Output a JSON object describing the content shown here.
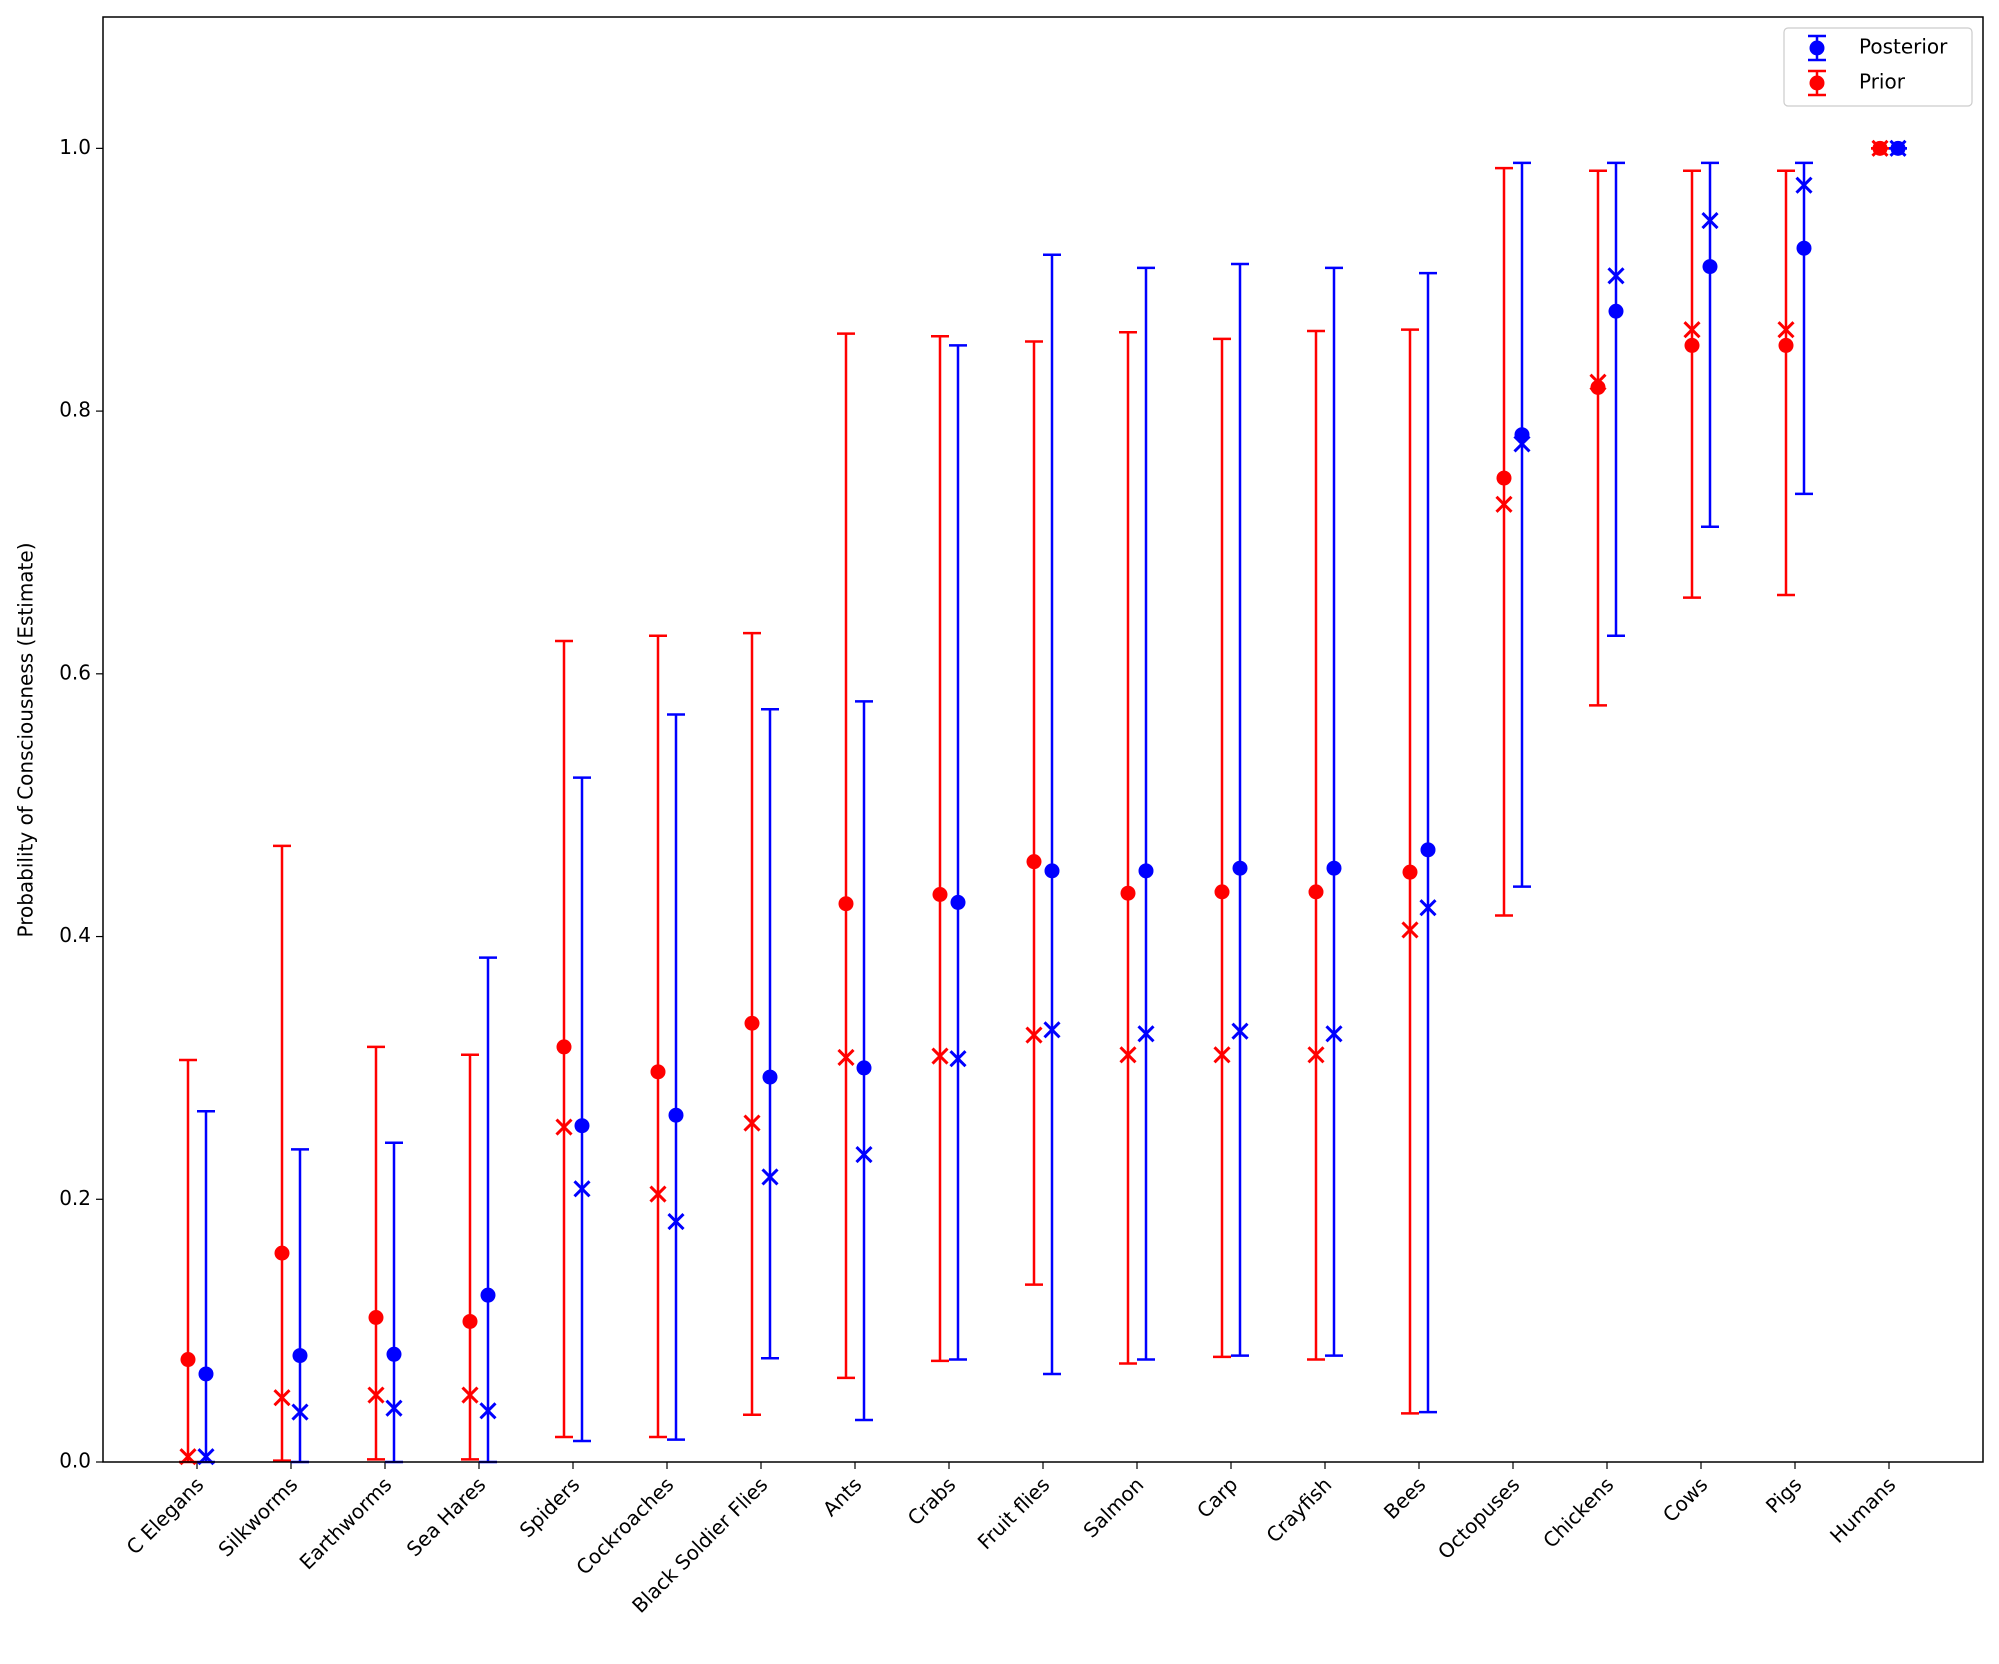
{
  "chart_data": {
    "type": "errorbar",
    "ylabel": "Probability of Consciousness (Estimate)",
    "categories": [
      "C Elegans",
      "Silkworms",
      "Earthworms",
      "Sea Hares",
      "Spiders",
      "Cockroaches",
      "Black Soldier Flies",
      "Ants",
      "Crabs",
      "Fruit flies",
      "Salmon",
      "Carp",
      "Crayfish",
      "Bees",
      "Octopuses",
      "Chickens",
      "Cows",
      "Pigs",
      "Humans"
    ],
    "series": [
      {
        "name": "Posterior",
        "color": "#0000ff",
        "values": [
          0.067,
          0.081,
          0.082,
          0.127,
          0.256,
          0.264,
          0.293,
          0.3,
          0.426,
          0.45,
          0.45,
          0.452,
          0.452,
          0.466,
          0.782,
          0.876,
          0.91,
          0.924,
          1.0
        ],
        "medians": [
          0.004,
          0.038,
          0.041,
          0.039,
          0.208,
          0.183,
          0.217,
          0.234,
          0.307,
          0.329,
          0.326,
          0.328,
          0.326,
          0.422,
          0.775,
          0.903,
          0.945,
          0.972,
          1.0
        ],
        "lower": [
          0.0,
          0.0,
          0.0,
          0.0,
          0.016,
          0.017,
          0.079,
          0.032,
          0.078,
          0.067,
          0.078,
          0.081,
          0.081,
          0.038,
          0.438,
          0.629,
          0.712,
          0.737,
          1.0
        ],
        "upper": [
          0.267,
          0.238,
          0.243,
          0.384,
          0.521,
          0.569,
          0.573,
          0.579,
          0.85,
          0.919,
          0.909,
          0.912,
          0.909,
          0.905,
          0.989,
          0.989,
          0.989,
          0.989,
          1.0
        ]
      },
      {
        "name": "Prior",
        "color": "#ff0000",
        "values": [
          0.078,
          0.159,
          0.11,
          0.107,
          0.316,
          0.297,
          0.334,
          0.425,
          0.432,
          0.457,
          0.433,
          0.434,
          0.434,
          0.449,
          0.749,
          0.818,
          0.85,
          0.85,
          1.0
        ],
        "medians": [
          0.004,
          0.049,
          0.051,
          0.051,
          0.255,
          0.204,
          0.258,
          0.308,
          0.309,
          0.325,
          0.31,
          0.31,
          0.31,
          0.405,
          0.729,
          0.822,
          0.862,
          0.862,
          1.0
        ],
        "lower": [
          0.0,
          0.001,
          0.002,
          0.002,
          0.019,
          0.019,
          0.036,
          0.064,
          0.077,
          0.135,
          0.075,
          0.08,
          0.078,
          0.037,
          0.416,
          0.576,
          0.658,
          0.66,
          1.0
        ],
        "upper": [
          0.306,
          0.469,
          0.316,
          0.31,
          0.625,
          0.629,
          0.631,
          0.859,
          0.857,
          0.853,
          0.86,
          0.855,
          0.861,
          0.862,
          0.985,
          0.983,
          0.983,
          0.983,
          1.0
        ]
      }
    ],
    "ylim": [
      0,
      1.1
    ],
    "yticks": [
      {
        "value": 0,
        "label": "0.0"
      },
      0.2,
      0.4,
      0.6,
      0.8,
      {
        "value": 1,
        "label": "1.0"
      }
    ],
    "legend": "upper right"
  }
}
